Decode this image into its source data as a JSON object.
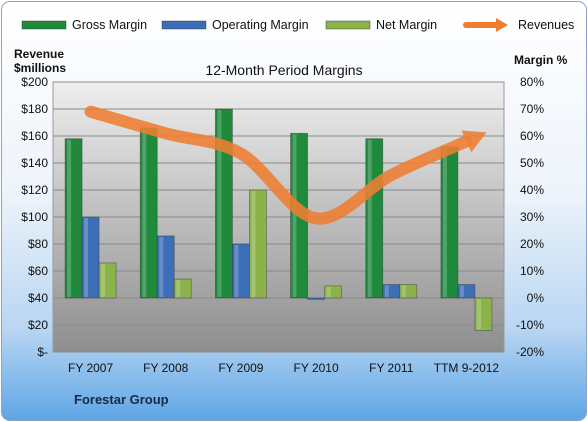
{
  "chart_data": {
    "type": "bar",
    "title": "12-Month Period Margins",
    "footer": "Forestar Group",
    "categories": [
      "FY 2007",
      "FY 2008",
      "FY 2009",
      "FY 2010",
      "FY 2011",
      "TTM 9-2012"
    ],
    "y_left": {
      "label_line1": "Revenue",
      "label_line2": "$millions",
      "range": [
        0,
        200
      ],
      "ticks": [
        "$-",
        "$20",
        "$40",
        "$60",
        "$80",
        "$100",
        "$120",
        "$140",
        "$160",
        "$180",
        "$200"
      ]
    },
    "y_right": {
      "label": "Margin %",
      "range": [
        -20,
        80
      ],
      "ticks": [
        "-20%",
        "-10%",
        "0%",
        "10%",
        "20%",
        "30%",
        "40%",
        "50%",
        "60%",
        "70%",
        "80%"
      ]
    },
    "legend_position": "top",
    "series": [
      {
        "name": "Gross Margin",
        "axis": "right",
        "kind": "bar",
        "color": "#1f8a3c",
        "values": [
          59,
          63,
          70,
          61,
          59,
          56
        ]
      },
      {
        "name": "Operating Margin",
        "axis": "right",
        "kind": "bar",
        "color": "#3d6fb8",
        "values": [
          30,
          23,
          20,
          -0.5,
          5,
          5
        ]
      },
      {
        "name": "Net Margin",
        "axis": "right",
        "kind": "bar",
        "color": "#8bb34a",
        "values": [
          13,
          7,
          40,
          4.5,
          5,
          -12
        ]
      },
      {
        "name": "Revenues",
        "axis": "left",
        "kind": "line",
        "color": "#ee7d31",
        "values": [
          178,
          162,
          147,
          99,
          131,
          156
        ]
      }
    ]
  }
}
